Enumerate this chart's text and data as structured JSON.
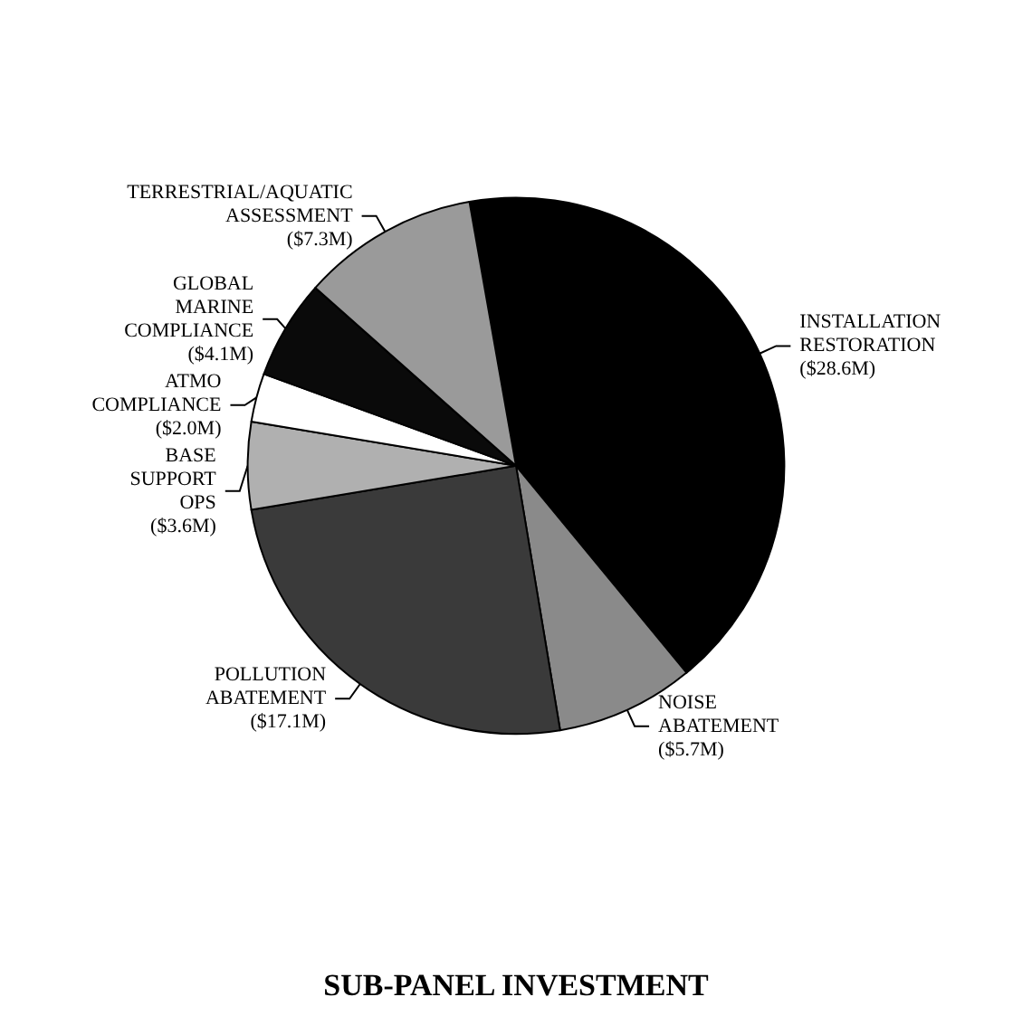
{
  "chart_data": {
    "type": "pie",
    "title": "SUB-PANEL INVESTMENT",
    "categories": [
      "INSTALLATION RESTORATION",
      "NOISE ABATEMENT",
      "POLLUTION ABATEMENT",
      "BASE SUPPORT OPS",
      "ATMO COMPLIANCE",
      "GLOBAL MARINE COMPLIANCE",
      "TERRESTRIAL/AQUATIC ASSESSMENT"
    ],
    "values": [
      28.6,
      5.7,
      17.1,
      3.6,
      2.0,
      4.1,
      7.3
    ],
    "value_labels": [
      "($28.6M)",
      "($5.7M)",
      "($17.1M)",
      "($3.6M)",
      "($2.0M)",
      "($4.1M)",
      "($7.3M)"
    ],
    "colors": [
      "#000000",
      "#8a8a8a",
      "#3a3a3a",
      "#b0b0b0",
      "#ffffff",
      "#0a0a0a",
      "#9a9a9a"
    ],
    "legend": false
  }
}
